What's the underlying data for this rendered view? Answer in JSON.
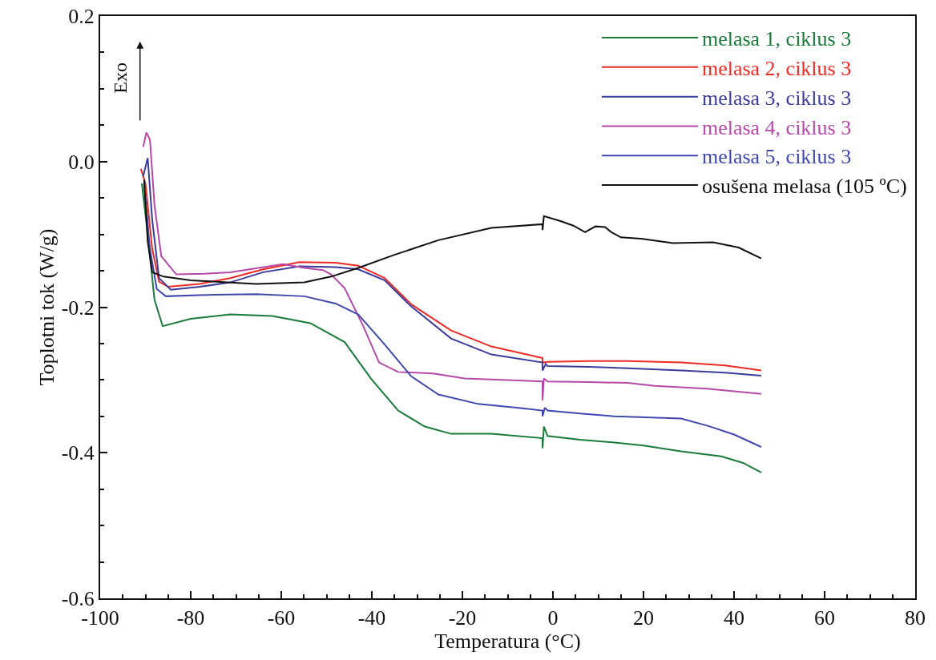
{
  "chart_data": {
    "type": "line",
    "xlabel": "Temperatura (°C)",
    "ylabel": "Toplotni tok (W/g)",
    "annotations": [
      "Exo"
    ],
    "xlim": [
      -100,
      80
    ],
    "ylim": [
      -0.6,
      0.2
    ],
    "xticks": [
      -100,
      {
        "value": -95,
        "label": null
      },
      {
        "value": -90,
        "label": null
      },
      {
        "value": -85,
        "label": null
      },
      -80,
      {
        "value": -75,
        "label": null
      },
      {
        "value": -70,
        "label": null
      },
      {
        "value": -65,
        "label": null
      },
      -60,
      {
        "value": -55,
        "label": null
      },
      {
        "value": -50,
        "label": null
      },
      {
        "value": -45,
        "label": null
      },
      -40,
      {
        "value": -35,
        "label": null
      },
      {
        "value": -30,
        "label": null
      },
      {
        "value": -25,
        "label": null
      },
      -20,
      {
        "value": -15,
        "label": null
      },
      {
        "value": -10,
        "label": null
      },
      {
        "value": -5,
        "label": null
      },
      0,
      {
        "value": 5,
        "label": null
      },
      {
        "value": 10,
        "label": null
      },
      {
        "value": 15,
        "label": null
      },
      20,
      {
        "value": 25,
        "label": null
      },
      {
        "value": 30,
        "label": null
      },
      {
        "value": 35,
        "label": null
      },
      40,
      {
        "value": 45,
        "label": null
      },
      {
        "value": 50,
        "label": null
      },
      {
        "value": 55,
        "label": null
      },
      60,
      {
        "value": 65,
        "label": null
      },
      {
        "value": 70,
        "label": null
      },
      {
        "value": 75,
        "label": null
      },
      80
    ],
    "yticks": [
      -0.6,
      {
        "value": -0.55,
        "label": null
      },
      {
        "value": -0.5,
        "label": null
      },
      {
        "value": -0.45,
        "label": null
      },
      -0.4,
      {
        "value": -0.35,
        "label": null
      },
      {
        "value": -0.3,
        "label": null
      },
      {
        "value": -0.25,
        "label": null
      },
      -0.2,
      {
        "value": -0.15,
        "label": null
      },
      {
        "value": -0.1,
        "label": null
      },
      {
        "value": -0.05,
        "label": null
      },
      {
        "value": 0,
        "label": "0.0"
      },
      {
        "value": 0.05,
        "label": null
      },
      {
        "value": 0.1,
        "label": null
      },
      {
        "value": 0.15,
        "label": null
      },
      0.2
    ],
    "grid": false,
    "legend": "top right",
    "marker": "none",
    "line_style": "solid",
    "series": [
      {
        "name": "melasa 1, ciklus 3",
        "color": "#1a7a3a",
        "x": [
          -90.8,
          -89.5,
          -88,
          -86.2,
          -80,
          -71.3,
          -62,
          -53.6,
          -46,
          -40.2,
          -34.2,
          -28.3,
          -22.5,
          -13.6,
          -2.3,
          -2.3,
          -2,
          -1.2,
          6,
          13.6,
          20,
          28.3,
          37.2,
          42,
          46
        ],
        "values": [
          -0.03,
          -0.1,
          -0.19,
          -0.226,
          -0.216,
          -0.21,
          -0.212,
          -0.222,
          -0.248,
          -0.298,
          -0.342,
          -0.364,
          -0.374,
          -0.374,
          -0.38,
          -0.394,
          -0.364,
          -0.377,
          -0.382,
          -0.386,
          -0.39,
          -0.398,
          -0.405,
          -0.414,
          -0.427
        ]
      },
      {
        "name": "melasa 2, ciklus 3",
        "color": "#ee2a24",
        "x": [
          -91,
          -90,
          -88.5,
          -87,
          -85,
          -78,
          -71.3,
          -64,
          -56,
          -48,
          -43,
          -37.2,
          -31.3,
          -22.5,
          -13.6,
          -2.3,
          -2.3,
          -1.2,
          8,
          16.5,
          28.3,
          38,
          46
        ],
        "values": [
          -0.01,
          -0.03,
          -0.12,
          -0.165,
          -0.172,
          -0.168,
          -0.16,
          -0.148,
          -0.138,
          -0.139,
          -0.143,
          -0.16,
          -0.196,
          -0.232,
          -0.254,
          -0.27,
          -0.276,
          -0.275,
          -0.274,
          -0.274,
          -0.276,
          -0.28,
          -0.287
        ]
      },
      {
        "name": "melasa 3, ciklus 3",
        "color": "#3b3b9b",
        "x": [
          -90.5,
          -89.5,
          -88.5,
          -87,
          -84.4,
          -78,
          -71.3,
          -64,
          -56,
          -48,
          -43,
          -37.2,
          -31.3,
          -22.5,
          -13.6,
          -2.3,
          -2.3,
          -1.6,
          -1.2,
          8,
          16.5,
          28.3,
          38,
          46
        ],
        "values": [
          -0.02,
          0.005,
          -0.08,
          -0.16,
          -0.176,
          -0.172,
          -0.166,
          -0.152,
          -0.144,
          -0.145,
          -0.148,
          -0.163,
          -0.199,
          -0.243,
          -0.265,
          -0.276,
          -0.287,
          -0.278,
          -0.281,
          -0.282,
          -0.284,
          -0.287,
          -0.29,
          -0.294
        ]
      },
      {
        "name": "melasa 4, ciklus 3",
        "color": "#b548a8",
        "x": [
          -90.5,
          -89.8,
          -89,
          -88,
          -86.5,
          -83.2,
          -77,
          -71.3,
          -65,
          -59.6,
          -54.9,
          -50.8,
          -49,
          -46,
          -41.9,
          -38.4,
          -34.2,
          -26.5,
          -19.5,
          -10,
          -2.3,
          -2.3,
          -2,
          -1.2,
          8,
          16.5,
          22.5,
          34,
          46
        ],
        "values": [
          0.02,
          0.04,
          0.03,
          -0.06,
          -0.13,
          -0.155,
          -0.154,
          -0.152,
          -0.146,
          -0.141,
          -0.146,
          -0.149,
          -0.155,
          -0.174,
          -0.226,
          -0.276,
          -0.289,
          -0.291,
          -0.298,
          -0.3,
          -0.302,
          -0.328,
          -0.298,
          -0.302,
          -0.303,
          -0.304,
          -0.308,
          -0.312,
          -0.319
        ]
      },
      {
        "name": "melasa 5, ciklus 3",
        "color": "#3f48ad",
        "x": [
          -90.3,
          -89,
          -87.5,
          -85.5,
          -75,
          -65.5,
          -54.9,
          -48,
          -43,
          -37.2,
          -31.3,
          -25.3,
          -16.5,
          -8,
          -2.3,
          -2.3,
          -1.8,
          -1.2,
          6,
          13.6,
          28.3,
          34.2,
          40,
          46
        ],
        "values": [
          -0.03,
          -0.12,
          -0.175,
          -0.185,
          -0.183,
          -0.182,
          -0.185,
          -0.195,
          -0.21,
          -0.251,
          -0.295,
          -0.32,
          -0.333,
          -0.338,
          -0.342,
          -0.35,
          -0.338,
          -0.342,
          -0.346,
          -0.35,
          -0.353,
          -0.363,
          -0.375,
          -0.392
        ]
      },
      {
        "name": "osušena melasa (105 ºC)",
        "color": "#111111",
        "x": [
          -90.3,
          -89.5,
          -88.5,
          -86,
          -80,
          -72,
          -65.5,
          -54.9,
          -49,
          -43,
          -35,
          -25.3,
          -13.6,
          -2.3,
          -2.3,
          -2,
          1.8,
          4.5,
          7.1,
          9.4,
          11.5,
          12.9,
          15,
          19.5,
          26.5,
          35.4,
          41,
          46
        ],
        "values": [
          -0.025,
          -0.11,
          -0.152,
          -0.158,
          -0.163,
          -0.166,
          -0.168,
          -0.166,
          -0.158,
          -0.146,
          -0.128,
          -0.108,
          -0.091,
          -0.086,
          -0.094,
          -0.075,
          -0.082,
          -0.088,
          -0.097,
          -0.089,
          -0.09,
          -0.097,
          -0.104,
          -0.106,
          -0.112,
          -0.111,
          -0.118,
          -0.133
        ]
      }
    ]
  }
}
